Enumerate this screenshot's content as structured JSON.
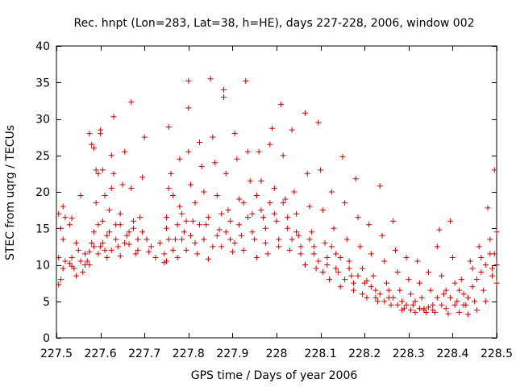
{
  "chart_data": {
    "type": "scatter",
    "title": "Rec. hnpt (Lon=283, Lat=38, h=HE), days 227-228, 2006, window 002",
    "xlabel": "GPS time / Days of year 2006",
    "ylabel": "STEC from uqrg / TECUs",
    "xlim": [
      227.5,
      228.5
    ],
    "ylim": [
      0,
      40
    ],
    "x_ticks": [
      227.5,
      227.6,
      227.7,
      227.8,
      227.9,
      228,
      228.1,
      228.2,
      228.3,
      228.4,
      228.5
    ],
    "x_tick_labels": [
      "227.5",
      "227.6",
      "227.7",
      "227.8",
      "227.9",
      "228",
      "228.1",
      "228.2",
      "228.3",
      "228.4",
      "228.5"
    ],
    "y_ticks": [
      0,
      5,
      10,
      15,
      20,
      25,
      30,
      35,
      40
    ],
    "y_tick_labels": [
      "0",
      "5",
      "10",
      "15",
      "20",
      "25",
      "30",
      "35",
      "40"
    ],
    "grid": false,
    "marker": "plus",
    "color": "#cc0000",
    "points": [
      [
        227.505,
        7.3
      ],
      [
        227.51,
        8.0
      ],
      [
        227.515,
        9.5
      ],
      [
        227.52,
        10.5
      ],
      [
        227.505,
        11.0
      ],
      [
        227.515,
        13.5
      ],
      [
        227.51,
        15.0
      ],
      [
        227.52,
        16.5
      ],
      [
        227.515,
        18.0
      ],
      [
        227.505,
        17.0
      ],
      [
        227.53,
        10.2
      ],
      [
        227.535,
        9.8
      ],
      [
        227.53,
        15.5
      ],
      [
        227.535,
        16.4
      ],
      [
        227.54,
        9.5
      ],
      [
        227.545,
        8.5
      ],
      [
        227.55,
        12.0
      ],
      [
        227.555,
        19.5
      ],
      [
        227.56,
        9.0
      ],
      [
        227.565,
        10.0
      ],
      [
        227.57,
        10.5
      ],
      [
        227.575,
        11.8
      ],
      [
        227.58,
        13.0
      ],
      [
        227.585,
        14.5
      ],
      [
        227.575,
        28.0
      ],
      [
        227.58,
        26.5
      ],
      [
        227.585,
        26.0
      ],
      [
        227.59,
        23.0
      ],
      [
        227.595,
        22.5
      ],
      [
        227.59,
        18.5
      ],
      [
        227.595,
        15.5
      ],
      [
        227.6,
        12.5
      ],
      [
        227.6,
        28.5
      ],
      [
        227.6,
        28.0
      ],
      [
        227.605,
        23.0
      ],
      [
        227.61,
        19.5
      ],
      [
        227.605,
        16.0
      ],
      [
        227.61,
        12.0
      ],
      [
        227.615,
        11.0
      ],
      [
        227.62,
        14.5
      ],
      [
        227.62,
        17.5
      ],
      [
        227.625,
        20.5
      ],
      [
        227.625,
        25.0
      ],
      [
        227.63,
        30.3
      ],
      [
        227.63,
        22.5
      ],
      [
        227.635,
        15.5
      ],
      [
        227.64,
        12.5
      ],
      [
        227.645,
        11.2
      ],
      [
        227.645,
        17.0
      ],
      [
        227.65,
        21.0
      ],
      [
        227.655,
        25.5
      ],
      [
        227.66,
        14.0
      ],
      [
        227.665,
        12.8
      ],
      [
        227.67,
        32.3
      ],
      [
        227.67,
        20.5
      ],
      [
        227.675,
        15.0
      ],
      [
        227.68,
        11.5
      ],
      [
        227.685,
        12.0
      ],
      [
        227.69,
        16.5
      ],
      [
        227.695,
        22.0
      ],
      [
        227.7,
        27.5
      ],
      [
        227.705,
        13.5
      ],
      [
        227.71,
        11.8
      ],
      [
        227.745,
        10.3
      ],
      [
        227.75,
        10.5
      ],
      [
        227.75,
        15.0
      ],
      [
        227.75,
        16.5
      ],
      [
        227.755,
        20.5
      ],
      [
        227.755,
        28.9
      ],
      [
        227.76,
        22.5
      ],
      [
        227.765,
        19.5
      ],
      [
        227.77,
        13.5
      ],
      [
        227.775,
        11.0
      ],
      [
        227.78,
        24.5
      ],
      [
        227.78,
        18.0
      ],
      [
        227.785,
        17.0
      ],
      [
        227.79,
        14.5
      ],
      [
        227.795,
        12.0
      ],
      [
        227.8,
        35.2
      ],
      [
        227.8,
        31.5
      ],
      [
        227.8,
        25.5
      ],
      [
        227.805,
        21.0
      ],
      [
        227.81,
        16.0
      ],
      [
        227.815,
        13.0
      ],
      [
        227.82,
        11.5
      ],
      [
        227.825,
        26.8
      ],
      [
        227.83,
        23.5
      ],
      [
        227.835,
        20.0
      ],
      [
        227.84,
        15.5
      ],
      [
        227.845,
        10.8
      ],
      [
        227.85,
        35.5
      ],
      [
        227.855,
        27.5
      ],
      [
        227.86,
        24.0
      ],
      [
        227.865,
        19.5
      ],
      [
        227.87,
        14.8
      ],
      [
        227.875,
        12.5
      ],
      [
        227.88,
        34.0
      ],
      [
        227.88,
        33.0
      ],
      [
        227.885,
        22.5
      ],
      [
        227.89,
        17.5
      ],
      [
        227.895,
        13.5
      ],
      [
        227.9,
        11.8
      ],
      [
        227.905,
        28.0
      ],
      [
        227.91,
        24.5
      ],
      [
        227.915,
        19.0
      ],
      [
        227.92,
        14.0
      ],
      [
        227.925,
        12.0
      ],
      [
        227.93,
        35.2
      ],
      [
        227.935,
        25.5
      ],
      [
        227.94,
        21.5
      ],
      [
        227.945,
        17.0
      ],
      [
        227.95,
        13.5
      ],
      [
        227.955,
        11.0
      ],
      [
        227.96,
        25.5
      ],
      [
        227.965,
        21.5
      ],
      [
        227.97,
        16.5
      ],
      [
        227.975,
        13.0
      ],
      [
        227.98,
        11.5
      ],
      [
        227.985,
        26.5
      ],
      [
        227.99,
        28.7
      ],
      [
        227.995,
        20.5
      ],
      [
        228.0,
        16.0
      ],
      [
        228.005,
        12.5
      ],
      [
        228.01,
        32.0
      ],
      [
        228.015,
        25.0
      ],
      [
        228.02,
        19.0
      ],
      [
        228.025,
        15.0
      ],
      [
        228.03,
        12.0
      ],
      [
        228.035,
        28.5
      ],
      [
        228.04,
        20.0
      ],
      [
        228.045,
        17.0
      ],
      [
        228.05,
        14.0
      ],
      [
        228.055,
        11.5
      ],
      [
        228.065,
        30.8
      ],
      [
        228.07,
        22.5
      ],
      [
        228.075,
        18.0
      ],
      [
        228.08,
        14.5
      ],
      [
        228.085,
        11.5
      ],
      [
        228.09,
        9.5
      ],
      [
        228.095,
        29.5
      ],
      [
        228.1,
        23.0
      ],
      [
        228.105,
        17.5
      ],
      [
        228.11,
        13.0
      ],
      [
        228.115,
        10.0
      ],
      [
        228.12,
        8.0
      ],
      [
        228.125,
        20.0
      ],
      [
        228.13,
        15.0
      ],
      [
        228.135,
        11.5
      ],
      [
        228.14,
        9.0
      ],
      [
        228.145,
        7.0
      ],
      [
        228.15,
        24.8
      ],
      [
        228.155,
        18.5
      ],
      [
        228.16,
        13.5
      ],
      [
        228.165,
        10.5
      ],
      [
        228.17,
        8.5
      ],
      [
        228.175,
        6.5
      ],
      [
        228.18,
        21.8
      ],
      [
        228.185,
        16.5
      ],
      [
        228.19,
        12.5
      ],
      [
        228.195,
        9.5
      ],
      [
        228.2,
        7.5
      ],
      [
        228.205,
        5.5
      ],
      [
        228.21,
        15.5
      ],
      [
        228.215,
        11.5
      ],
      [
        228.22,
        8.5
      ],
      [
        228.225,
        6.5
      ],
      [
        228.23,
        5.0
      ],
      [
        228.235,
        20.8
      ],
      [
        228.24,
        14.0
      ],
      [
        228.245,
        10.5
      ],
      [
        228.25,
        7.5
      ],
      [
        228.255,
        5.5
      ],
      [
        228.26,
        4.5
      ],
      [
        228.265,
        16.0
      ],
      [
        228.27,
        12.0
      ],
      [
        228.275,
        9.0
      ],
      [
        228.28,
        6.5
      ],
      [
        228.285,
        5.0
      ],
      [
        228.29,
        4.0
      ],
      [
        228.295,
        11.0
      ],
      [
        228.3,
        8.0
      ],
      [
        228.305,
        6.0
      ],
      [
        228.31,
        4.5
      ],
      [
        228.315,
        3.5
      ],
      [
        228.32,
        10.5
      ],
      [
        228.325,
        7.5
      ],
      [
        228.33,
        5.5
      ],
      [
        228.335,
        4.0
      ],
      [
        228.34,
        3.5
      ],
      [
        228.345,
        9.0
      ],
      [
        228.35,
        6.5
      ],
      [
        228.355,
        4.5
      ],
      [
        228.36,
        3.5
      ],
      [
        228.365,
        12.5
      ],
      [
        228.37,
        14.8
      ],
      [
        228.375,
        8.5
      ],
      [
        228.38,
        6.0
      ],
      [
        228.385,
        4.0
      ],
      [
        228.39,
        3.3
      ],
      [
        228.395,
        16.0
      ],
      [
        228.4,
        11.0
      ],
      [
        228.405,
        7.5
      ],
      [
        228.41,
        5.0
      ],
      [
        228.415,
        3.5
      ],
      [
        228.42,
        8.0
      ],
      [
        228.425,
        6.0
      ],
      [
        228.43,
        4.5
      ],
      [
        228.435,
        3.2
      ],
      [
        228.44,
        10.5
      ],
      [
        228.445,
        7.0
      ],
      [
        228.45,
        5.0
      ],
      [
        228.455,
        3.8
      ],
      [
        228.46,
        12.5
      ],
      [
        228.465,
        9.0
      ],
      [
        228.47,
        6.5
      ],
      [
        228.475,
        5.0
      ],
      [
        228.48,
        17.8
      ],
      [
        228.485,
        11.5
      ],
      [
        228.49,
        8.5
      ],
      [
        228.495,
        23.0
      ],
      [
        228.5,
        14.5
      ],
      [
        228.5,
        10.0
      ],
      [
        228.5,
        7.5
      ],
      [
        228.495,
        11.5
      ],
      [
        228.49,
        9.5
      ],
      [
        228.485,
        13.5
      ],
      [
        228.475,
        10.0
      ],
      [
        228.465,
        11.0
      ],
      [
        228.455,
        8.0
      ],
      [
        228.445,
        9.5
      ],
      [
        228.435,
        5.5
      ],
      [
        228.425,
        4.5
      ],
      [
        228.415,
        6.5
      ],
      [
        228.405,
        4.5
      ],
      [
        228.395,
        5.5
      ],
      [
        228.385,
        6.5
      ],
      [
        228.375,
        4.5
      ],
      [
        228.365,
        5.5
      ],
      [
        228.355,
        3.8
      ],
      [
        228.345,
        4.2
      ],
      [
        228.335,
        3.8
      ],
      [
        228.325,
        4.0
      ],
      [
        228.315,
        5.0
      ],
      [
        228.305,
        3.8
      ],
      [
        228.295,
        4.5
      ],
      [
        228.285,
        3.8
      ],
      [
        228.275,
        4.5
      ],
      [
        228.265,
        5.5
      ],
      [
        228.255,
        6.5
      ],
      [
        228.245,
        5.0
      ],
      [
        228.235,
        6.0
      ],
      [
        228.225,
        5.5
      ],
      [
        228.215,
        7.0
      ],
      [
        228.205,
        7.8
      ],
      [
        228.195,
        6.0
      ],
      [
        228.185,
        8.5
      ],
      [
        228.175,
        7.5
      ],
      [
        228.165,
        9.5
      ],
      [
        228.155,
        8.0
      ],
      [
        228.145,
        11.0
      ],
      [
        228.135,
        9.5
      ],
      [
        228.125,
        12.5
      ],
      [
        228.115,
        11.0
      ],
      [
        228.105,
        9.0
      ],
      [
        228.095,
        10.5
      ],
      [
        228.085,
        12.5
      ],
      [
        228.075,
        13.5
      ],
      [
        228.065,
        10.0
      ],
      [
        228.055,
        12.5
      ],
      [
        228.045,
        14.5
      ],
      [
        228.035,
        13.5
      ],
      [
        228.025,
        16.5
      ],
      [
        228.015,
        18.5
      ],
      [
        228.005,
        13.5
      ],
      [
        227.995,
        17.0
      ],
      [
        227.985,
        18.5
      ],
      [
        227.975,
        15.0
      ],
      [
        227.965,
        17.5
      ],
      [
        227.955,
        19.5
      ],
      [
        227.945,
        14.5
      ],
      [
        227.935,
        16.5
      ],
      [
        227.925,
        18.5
      ],
      [
        227.915,
        15.5
      ],
      [
        227.905,
        13.0
      ],
      [
        227.895,
        16.0
      ],
      [
        227.885,
        14.5
      ],
      [
        227.875,
        17.0
      ],
      [
        227.865,
        14.0
      ],
      [
        227.855,
        12.5
      ],
      [
        227.845,
        16.5
      ],
      [
        227.835,
        13.5
      ],
      [
        227.825,
        15.5
      ],
      [
        227.815,
        18.5
      ],
      [
        227.805,
        14.0
      ],
      [
        227.795,
        16.0
      ],
      [
        227.785,
        13.5
      ],
      [
        227.775,
        15.5
      ],
      [
        227.765,
        12.0
      ],
      [
        227.755,
        13.5
      ],
      [
        227.745,
        11.5
      ],
      [
        227.735,
        13.0
      ],
      [
        227.725,
        11.0
      ],
      [
        227.715,
        12.5
      ],
      [
        227.695,
        14.5
      ],
      [
        227.685,
        13.5
      ],
      [
        227.675,
        16.0
      ],
      [
        227.665,
        14.5
      ],
      [
        227.655,
        13.0
      ],
      [
        227.645,
        15.5
      ],
      [
        227.635,
        13.5
      ],
      [
        227.625,
        12.0
      ],
      [
        227.615,
        14.0
      ],
      [
        227.605,
        13.0
      ],
      [
        227.595,
        11.5
      ],
      [
        227.585,
        12.5
      ],
      [
        227.575,
        10.0
      ],
      [
        227.565,
        11.5
      ],
      [
        227.555,
        10.5
      ],
      [
        227.545,
        13.0
      ],
      [
        227.535,
        11.0
      ]
    ]
  }
}
